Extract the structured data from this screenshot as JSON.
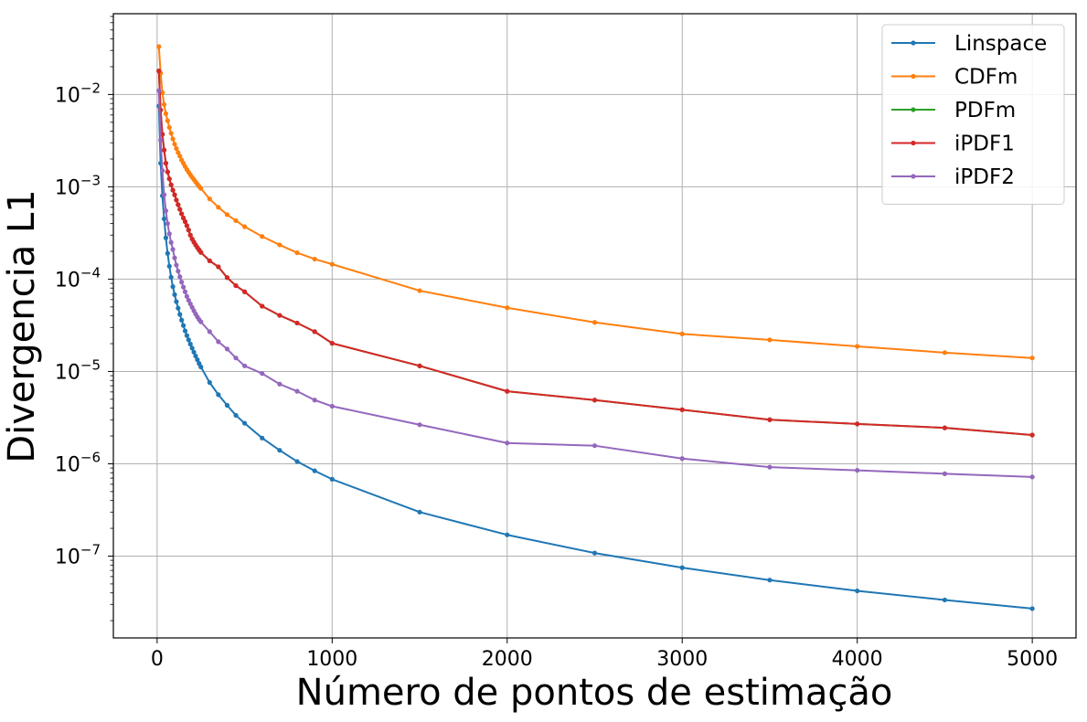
{
  "chart_data": {
    "type": "line",
    "xlabel": "Número de pontos de estimação",
    "ylabel": "Divergencia L1",
    "xlim": [
      -250,
      5250
    ],
    "ylim": [
      1.3e-08,
      0.075
    ],
    "yscale": "log",
    "grid": true,
    "legend_position": "top-right",
    "xticks": [
      0,
      1000,
      2000,
      3000,
      4000,
      5000
    ],
    "xtick_labels": [
      "0",
      "1000",
      "2000",
      "3000",
      "4000",
      "5000"
    ],
    "yticks": [
      1e-07,
      1e-06,
      1e-05,
      0.0001,
      0.001,
      0.01
    ],
    "ytick_labels": [
      {
        "base": "10",
        "exp": "−7"
      },
      {
        "base": "10",
        "exp": "−6"
      },
      {
        "base": "10",
        "exp": "−5"
      },
      {
        "base": "10",
        "exp": "−4"
      },
      {
        "base": "10",
        "exp": "−3"
      },
      {
        "base": "10",
        "exp": "−2"
      }
    ],
    "series": [
      {
        "name": "Linspace",
        "color": "#1f77b4",
        "x": [
          10,
          20,
          30,
          40,
          50,
          60,
          70,
          80,
          90,
          100,
          110,
          120,
          130,
          140,
          150,
          160,
          170,
          180,
          190,
          200,
          210,
          220,
          230,
          240,
          250,
          300,
          350,
          400,
          450,
          500,
          600,
          700,
          800,
          900,
          1000,
          1500,
          2000,
          2500,
          3000,
          3500,
          4000,
          4500,
          5000
        ],
        "y": [
          0.0075,
          0.0018,
          0.0008,
          0.00045,
          0.00028,
          0.00019,
          0.000138,
          0.000105,
          8.3e-05,
          6.8e-05,
          5.7e-05,
          4.85e-05,
          4.15e-05,
          3.6e-05,
          3.15e-05,
          2.75e-05,
          2.45e-05,
          2.2e-05,
          1.98e-05,
          1.79e-05,
          1.62e-05,
          1.47e-05,
          1.34e-05,
          1.22e-05,
          1.12e-05,
          7.6e-06,
          5.6e-06,
          4.3e-06,
          3.35e-06,
          2.75e-06,
          1.9e-06,
          1.4e-06,
          1.06e-06,
          8.4e-07,
          6.8e-07,
          3e-07,
          1.7e-07,
          1.08e-07,
          7.5e-08,
          5.5e-08,
          4.2e-08,
          3.35e-08,
          2.7e-08
        ]
      },
      {
        "name": "CDFm",
        "color": "#ff7f0e",
        "x": [
          10,
          20,
          30,
          40,
          50,
          60,
          70,
          80,
          90,
          100,
          110,
          120,
          130,
          140,
          150,
          160,
          170,
          180,
          190,
          200,
          210,
          220,
          230,
          240,
          250,
          300,
          350,
          400,
          450,
          500,
          600,
          700,
          800,
          900,
          1000,
          1500,
          2000,
          2500,
          3000,
          3500,
          4000,
          4500,
          5000
        ],
        "y": [
          0.033,
          0.017,
          0.0105,
          0.0078,
          0.0062,
          0.0052,
          0.0044,
          0.0038,
          0.0033,
          0.0029,
          0.0026,
          0.00235,
          0.00215,
          0.00195,
          0.0018,
          0.00166,
          0.00154,
          0.00144,
          0.00135,
          0.00127,
          0.0012,
          0.00113,
          0.00107,
          0.00101,
          0.00096,
          0.00074,
          0.0006,
          0.0005,
          0.00043,
          0.00037,
          0.00029,
          0.000235,
          0.000193,
          0.000165,
          0.000145,
          7.5e-05,
          4.9e-05,
          3.4e-05,
          2.55e-05,
          2.2e-05,
          1.87e-05,
          1.6e-05,
          1.4e-05
        ]
      },
      {
        "name": "PDFm",
        "color": "#2ca02c",
        "x": [
          10,
          20,
          30,
          40,
          50,
          60,
          70,
          80,
          90,
          100,
          110,
          120,
          130,
          140,
          150,
          160,
          170,
          180,
          190,
          200,
          210,
          220,
          230,
          240,
          250,
          300,
          350,
          400,
          450,
          500,
          600,
          700,
          800,
          900,
          1000,
          1500,
          2000,
          2500,
          3000,
          3500,
          4000,
          4500,
          5000
        ],
        "y": [
          0.018,
          0.0068,
          0.0037,
          0.0025,
          0.0018,
          0.00145,
          0.00122,
          0.00105,
          0.00092,
          0.00082,
          0.00072,
          0.00064,
          0.00057,
          0.00051,
          0.00046,
          0.00042,
          0.00038,
          0.00034,
          0.0003,
          0.000272,
          0.000252,
          0.000235,
          0.00022,
          0.000207,
          0.000195,
          0.000158,
          0.000136,
          0.000104,
          8.5e-05,
          7.3e-05,
          5.1e-05,
          4.05e-05,
          3.35e-05,
          2.7e-05,
          2.02e-05,
          1.15e-05,
          6.1e-06,
          4.9e-06,
          3.85e-06,
          3e-06,
          2.7e-06,
          2.45e-06,
          2.05e-06
        ]
      },
      {
        "name": "iPDF1",
        "color": "#d62728",
        "x": [
          10,
          20,
          30,
          40,
          50,
          60,
          70,
          80,
          90,
          100,
          110,
          120,
          130,
          140,
          150,
          160,
          170,
          180,
          190,
          200,
          210,
          220,
          230,
          240,
          250,
          300,
          350,
          400,
          450,
          500,
          600,
          700,
          800,
          900,
          1000,
          1500,
          2000,
          2500,
          3000,
          3500,
          4000,
          4500,
          5000
        ],
        "y": [
          0.018,
          0.0068,
          0.0037,
          0.0025,
          0.0018,
          0.00145,
          0.00122,
          0.00105,
          0.00092,
          0.00082,
          0.00072,
          0.00064,
          0.00057,
          0.00051,
          0.00046,
          0.00042,
          0.00038,
          0.00034,
          0.0003,
          0.000272,
          0.000252,
          0.000235,
          0.00022,
          0.000207,
          0.000195,
          0.000158,
          0.000136,
          0.000104,
          8.5e-05,
          7.3e-05,
          5.1e-05,
          4.05e-05,
          3.35e-05,
          2.7e-05,
          2.02e-05,
          1.15e-05,
          6.1e-06,
          4.9e-06,
          3.85e-06,
          3e-06,
          2.7e-06,
          2.45e-06,
          2.05e-06
        ]
      },
      {
        "name": "iPDF2",
        "color": "#9467bd",
        "x": [
          10,
          20,
          30,
          40,
          50,
          60,
          70,
          80,
          90,
          100,
          110,
          120,
          130,
          140,
          150,
          160,
          170,
          180,
          190,
          200,
          210,
          220,
          230,
          240,
          250,
          300,
          350,
          400,
          450,
          500,
          600,
          700,
          800,
          900,
          1000,
          1500,
          2000,
          2500,
          3000,
          3500,
          4000,
          4500,
          5000
        ],
        "y": [
          0.011,
          0.0032,
          0.0015,
          0.00082,
          0.00055,
          0.0004,
          0.00031,
          0.00025,
          0.00021,
          0.00017,
          0.000142,
          0.000122,
          0.000106,
          9.3e-05,
          8.2e-05,
          7.3e-05,
          6.5e-05,
          5.9e-05,
          5.4e-05,
          4.95e-05,
          4.55e-05,
          4.2e-05,
          3.9e-05,
          3.65e-05,
          3.45e-05,
          2.7e-05,
          2.1e-05,
          1.75e-05,
          1.4e-05,
          1.15e-05,
          9.5e-06,
          7.3e-06,
          6.1e-06,
          4.9e-06,
          4.2e-06,
          2.65e-06,
          1.68e-06,
          1.57e-06,
          1.14e-06,
          9.2e-07,
          8.5e-07,
          7.8e-07,
          7.2e-07
        ]
      }
    ]
  }
}
